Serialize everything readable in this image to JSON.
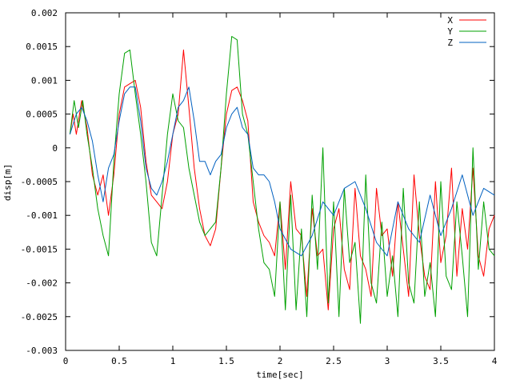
{
  "chart_data": {
    "type": "line",
    "title": "",
    "xlabel": "time[sec]",
    "ylabel": "disp[m]",
    "xlim": [
      0,
      4
    ],
    "ylim": [
      -0.003,
      0.002
    ],
    "xticks": [
      0,
      0.5,
      1,
      1.5,
      2,
      2.5,
      3,
      3.5,
      4
    ],
    "xtick_labels": [
      "0",
      "0.5",
      "1",
      "1.5",
      "2",
      "2.5",
      "3",
      "3.5",
      "4"
    ],
    "yticks": [
      0.002,
      0.0015,
      0.001,
      0.0005,
      0,
      -0.0005,
      -0.001,
      -0.0015,
      -0.002,
      -0.0025,
      -0.003
    ],
    "ytick_labels": [
      "0.002",
      "0.0015",
      "0.001",
      "0.0005",
      "0",
      "-0.0005",
      "-0.001",
      "-0.0015",
      "-0.002",
      "-0.0025",
      "-0.003"
    ],
    "grid": false,
    "legend_position": "top-right",
    "series": [
      {
        "name": "X",
        "color": "#ff0000",
        "x": [
          0.04,
          0.07,
          0.1,
          0.15,
          0.2,
          0.25,
          0.3,
          0.35,
          0.4,
          0.45,
          0.5,
          0.55,
          0.6,
          0.65,
          0.7,
          0.75,
          0.8,
          0.85,
          0.9,
          0.95,
          1.0,
          1.05,
          1.1,
          1.15,
          1.2,
          1.25,
          1.3,
          1.35,
          1.4,
          1.45,
          1.5,
          1.55,
          1.6,
          1.65,
          1.7,
          1.75,
          1.8,
          1.85,
          1.9,
          1.95,
          2.0,
          2.05,
          2.1,
          2.15,
          2.2,
          2.25,
          2.3,
          2.35,
          2.4,
          2.45,
          2.5,
          2.55,
          2.6,
          2.65,
          2.7,
          2.75,
          2.8,
          2.85,
          2.9,
          2.95,
          3.0,
          3.05,
          3.1,
          3.15,
          3.2,
          3.25,
          3.3,
          3.35,
          3.4,
          3.45,
          3.5,
          3.55,
          3.6,
          3.65,
          3.7,
          3.75,
          3.8,
          3.85,
          3.9,
          3.95,
          4.0
        ],
        "y": [
          0.0002,
          0.0005,
          0.0002,
          0.0007,
          0.0003,
          -0.0004,
          -0.0007,
          -0.0004,
          -0.001,
          -0.0004,
          0.0005,
          0.0009,
          0.00095,
          0.001,
          0.0006,
          -0.0002,
          -0.0007,
          -0.0008,
          -0.0009,
          -0.0005,
          0.0002,
          0.0005,
          0.00145,
          0.0006,
          -0.0003,
          -0.0009,
          -0.0013,
          -0.00145,
          -0.0012,
          -0.0003,
          0.0005,
          0.00085,
          0.0009,
          0.0007,
          0.0004,
          -0.0008,
          -0.0011,
          -0.0013,
          -0.0014,
          -0.0016,
          -0.0008,
          -0.0018,
          -0.0005,
          -0.0012,
          -0.0013,
          -0.0022,
          -0.0009,
          -0.0016,
          -0.0015,
          -0.0024,
          -0.0012,
          -0.0009,
          -0.0018,
          -0.0021,
          -0.0006,
          -0.0016,
          -0.0018,
          -0.0022,
          -0.0006,
          -0.0013,
          -0.0012,
          -0.0019,
          -0.0008,
          -0.0015,
          -0.0022,
          -0.0004,
          -0.0013,
          -0.0019,
          -0.0021,
          -0.0005,
          -0.0017,
          -0.0013,
          -0.0003,
          -0.0019,
          -0.0009,
          -0.0015,
          -0.0003,
          -0.0016,
          -0.0019,
          -0.0012,
          -0.001
        ]
      },
      {
        "name": "Y",
        "color": "#00a000",
        "x": [
          0.04,
          0.08,
          0.12,
          0.16,
          0.2,
          0.25,
          0.3,
          0.35,
          0.4,
          0.45,
          0.5,
          0.55,
          0.6,
          0.65,
          0.7,
          0.75,
          0.8,
          0.85,
          0.9,
          0.95,
          1.0,
          1.05,
          1.1,
          1.15,
          1.2,
          1.25,
          1.3,
          1.35,
          1.4,
          1.45,
          1.5,
          1.55,
          1.6,
          1.65,
          1.7,
          1.75,
          1.8,
          1.85,
          1.9,
          1.95,
          2.0,
          2.05,
          2.1,
          2.15,
          2.2,
          2.25,
          2.3,
          2.35,
          2.4,
          2.45,
          2.5,
          2.55,
          2.6,
          2.65,
          2.7,
          2.75,
          2.8,
          2.85,
          2.9,
          2.95,
          3.0,
          3.05,
          3.1,
          3.15,
          3.2,
          3.25,
          3.3,
          3.35,
          3.4,
          3.45,
          3.5,
          3.55,
          3.6,
          3.65,
          3.7,
          3.75,
          3.8,
          3.85,
          3.9,
          3.95,
          4.0
        ],
        "y": [
          0.0002,
          0.0007,
          0.0003,
          0.0007,
          0.0002,
          -0.0003,
          -0.0009,
          -0.0013,
          -0.0016,
          -0.0002,
          0.0008,
          0.0014,
          0.00145,
          0.0008,
          0.0002,
          -0.0005,
          -0.0014,
          -0.0016,
          -0.0007,
          0.0002,
          0.0008,
          0.0004,
          0.0003,
          -0.0003,
          -0.0007,
          -0.0011,
          -0.0013,
          -0.0012,
          -0.0011,
          -0.0003,
          0.0008,
          0.00165,
          0.0016,
          0.0005,
          0.0002,
          -0.0005,
          -0.0012,
          -0.0017,
          -0.0018,
          -0.0022,
          -0.0008,
          -0.0024,
          -0.0007,
          -0.0024,
          -0.0012,
          -0.0025,
          -0.0007,
          -0.0018,
          0,
          -0.0023,
          -0.0008,
          -0.0025,
          -0.0006,
          -0.0017,
          -0.0014,
          -0.0026,
          -0.0004,
          -0.002,
          -0.0023,
          -0.0011,
          -0.0022,
          -0.0016,
          -0.0025,
          -0.0006,
          -0.002,
          -0.0023,
          -0.0008,
          -0.0022,
          -0.0017,
          -0.0025,
          -0.0005,
          -0.0019,
          -0.0021,
          -0.0008,
          -0.0016,
          -0.0025,
          0,
          -0.0018,
          -0.0008,
          -0.0015,
          -0.0016
        ]
      },
      {
        "name": "Z",
        "color": "#0060c0",
        "x": [
          0.04,
          0.1,
          0.15,
          0.2,
          0.25,
          0.3,
          0.35,
          0.4,
          0.45,
          0.5,
          0.55,
          0.6,
          0.65,
          0.7,
          0.75,
          0.8,
          0.85,
          0.9,
          0.95,
          1.0,
          1.05,
          1.1,
          1.15,
          1.2,
          1.25,
          1.3,
          1.35,
          1.4,
          1.45,
          1.5,
          1.55,
          1.6,
          1.65,
          1.7,
          1.75,
          1.8,
          1.85,
          1.9,
          1.95,
          2.0,
          2.1,
          2.2,
          2.3,
          2.4,
          2.5,
          2.6,
          2.7,
          2.8,
          2.9,
          3.0,
          3.1,
          3.2,
          3.3,
          3.4,
          3.5,
          3.6,
          3.7,
          3.8,
          3.9,
          4.0
        ],
        "y": [
          0.0002,
          0.0005,
          0.0006,
          0.0004,
          0.0001,
          -0.0004,
          -0.0008,
          -0.0003,
          -0.0001,
          0.0004,
          0.0008,
          0.0009,
          0.0009,
          0.0004,
          -0.0003,
          -0.0006,
          -0.0007,
          -0.0005,
          -0.0002,
          0.0002,
          0.0006,
          0.0007,
          0.0009,
          0.0004,
          -0.0002,
          -0.0002,
          -0.0004,
          -0.0002,
          -0.0001,
          0.0003,
          0.0005,
          0.0006,
          0.0003,
          0.0002,
          -0.0003,
          -0.0004,
          -0.0004,
          -0.0005,
          -0.0008,
          -0.0012,
          -0.0015,
          -0.0016,
          -0.0013,
          -0.0008,
          -0.001,
          -0.0006,
          -0.0005,
          -0.0009,
          -0.0014,
          -0.0016,
          -0.0008,
          -0.0012,
          -0.0014,
          -0.0007,
          -0.0013,
          -0.0009,
          -0.0004,
          -0.001,
          -0.0006,
          -0.0007
        ]
      }
    ]
  }
}
